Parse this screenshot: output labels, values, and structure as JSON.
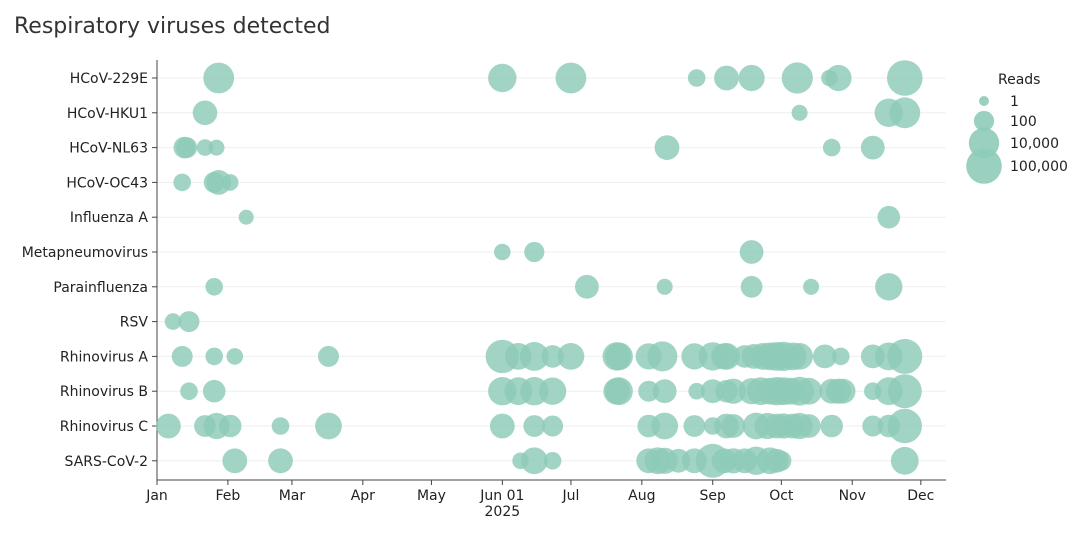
{
  "chart_data": {
    "type": "scatter",
    "title": "Respiratory viruses detected",
    "xlabel": "",
    "ylabel": "",
    "x_tick_labels": [
      "Jan",
      "Feb",
      "Mar",
      "Apr",
      "May",
      "Jun 01",
      "Jul",
      "Aug",
      "Sep",
      "Oct",
      "Nov",
      "Dec"
    ],
    "x_year_label": "2025",
    "xlim": [
      "2025-01-01",
      "2025-12-12"
    ],
    "categories": [
      "HCoV-229E",
      "HCoV-HKU1",
      "HCoV-NL63",
      "HCoV-OC43",
      "Influenza A",
      "Metapneumovirus",
      "Parainfluenza",
      "RSV",
      "Rhinovirus A",
      "Rhinovirus B",
      "Rhinovirus C",
      "SARS-CoV-2"
    ],
    "marker_color": "#8ecbb8",
    "grid": "horizontal",
    "legend": {
      "title": "Reads",
      "placement": "right",
      "entries": [
        {
          "label": "1",
          "reads": 1
        },
        {
          "label": "100",
          "reads": 100
        },
        {
          "label": "10,000",
          "reads": 10000
        },
        {
          "label": "100,000",
          "reads": 100000
        }
      ]
    },
    "points": [
      {
        "virus": "HCoV-229E",
        "date": "2025-01-28",
        "reads": 12000
      },
      {
        "virus": "HCoV-229E",
        "date": "2025-06-01",
        "reads": 4000
      },
      {
        "virus": "HCoV-229E",
        "date": "2025-07-01",
        "reads": 12000
      },
      {
        "virus": "HCoV-229E",
        "date": "2025-08-25",
        "reads": 30
      },
      {
        "virus": "HCoV-229E",
        "date": "2025-09-07",
        "reads": 800
      },
      {
        "virus": "HCoV-229E",
        "date": "2025-09-18",
        "reads": 1500
      },
      {
        "virus": "HCoV-229E",
        "date": "2025-10-08",
        "reads": 15000
      },
      {
        "virus": "HCoV-229E",
        "date": "2025-10-22",
        "reads": 20
      },
      {
        "virus": "HCoV-229E",
        "date": "2025-10-26",
        "reads": 1500
      },
      {
        "virus": "HCoV-229E",
        "date": "2025-11-24",
        "reads": 100000
      },
      {
        "virus": "HCoV-HKU1",
        "date": "2025-01-22",
        "reads": 700
      },
      {
        "virus": "HCoV-HKU1",
        "date": "2025-10-09",
        "reads": 15
      },
      {
        "virus": "HCoV-HKU1",
        "date": "2025-11-17",
        "reads": 4000
      },
      {
        "virus": "HCoV-HKU1",
        "date": "2025-11-24",
        "reads": 12000
      },
      {
        "virus": "HCoV-NL63",
        "date": "2025-01-13",
        "reads": 200
      },
      {
        "virus": "HCoV-NL63",
        "date": "2025-01-14",
        "reads": 150
      },
      {
        "virus": "HCoV-NL63",
        "date": "2025-01-22",
        "reads": 20
      },
      {
        "virus": "HCoV-NL63",
        "date": "2025-01-27",
        "reads": 15
      },
      {
        "virus": "HCoV-NL63",
        "date": "2025-08-12",
        "reads": 800
      },
      {
        "virus": "HCoV-NL63",
        "date": "2025-10-23",
        "reads": 30
      },
      {
        "virus": "HCoV-NL63",
        "date": "2025-11-10",
        "reads": 500
      },
      {
        "virus": "HCoV-OC43",
        "date": "2025-01-12",
        "reads": 30
      },
      {
        "virus": "HCoV-OC43",
        "date": "2025-01-26",
        "reads": 150
      },
      {
        "virus": "HCoV-OC43",
        "date": "2025-01-28",
        "reads": 800
      },
      {
        "virus": "HCoV-OC43",
        "date": "2025-02-02",
        "reads": 20
      },
      {
        "virus": "Influenza A",
        "date": "2025-02-09",
        "reads": 10
      },
      {
        "virus": "Influenza A",
        "date": "2025-11-17",
        "reads": 300
      },
      {
        "virus": "Metapneumovirus",
        "date": "2025-06-01",
        "reads": 20
      },
      {
        "virus": "Metapneumovirus",
        "date": "2025-06-15",
        "reads": 100
      },
      {
        "virus": "Metapneumovirus",
        "date": "2025-09-18",
        "reads": 500
      },
      {
        "virus": "Parainfluenza",
        "date": "2025-01-26",
        "reads": 30
      },
      {
        "virus": "Parainfluenza",
        "date": "2025-07-08",
        "reads": 500
      },
      {
        "virus": "Parainfluenza",
        "date": "2025-08-11",
        "reads": 15
      },
      {
        "virus": "Parainfluenza",
        "date": "2025-09-18",
        "reads": 200
      },
      {
        "virus": "Parainfluenza",
        "date": "2025-10-14",
        "reads": 15
      },
      {
        "virus": "Parainfluenza",
        "date": "2025-11-17",
        "reads": 2500
      },
      {
        "virus": "RSV",
        "date": "2025-01-08",
        "reads": 20
      },
      {
        "virus": "RSV",
        "date": "2025-01-15",
        "reads": 150
      },
      {
        "virus": "Rhinovirus A",
        "date": "2025-01-12",
        "reads": 150
      },
      {
        "virus": "Rhinovirus A",
        "date": "2025-01-26",
        "reads": 30
      },
      {
        "virus": "Rhinovirus A",
        "date": "2025-02-04",
        "reads": 20
      },
      {
        "virus": "Rhinovirus A",
        "date": "2025-03-17",
        "reads": 150
      },
      {
        "virus": "Rhinovirus A",
        "date": "2025-06-01",
        "reads": 40000
      },
      {
        "virus": "Rhinovirus A",
        "date": "2025-06-08",
        "reads": 2000
      },
      {
        "virus": "Rhinovirus A",
        "date": "2025-06-15",
        "reads": 5000
      },
      {
        "virus": "Rhinovirus A",
        "date": "2025-06-23",
        "reads": 300
      },
      {
        "virus": "Rhinovirus A",
        "date": "2025-07-01",
        "reads": 2000
      },
      {
        "virus": "Rhinovirus A",
        "date": "2025-07-21",
        "reads": 4000
      },
      {
        "virus": "Rhinovirus A",
        "date": "2025-07-22",
        "reads": 3000
      },
      {
        "virus": "Rhinovirus A",
        "date": "2025-08-04",
        "reads": 1500
      },
      {
        "virus": "Rhinovirus A",
        "date": "2025-08-10",
        "reads": 8000
      },
      {
        "virus": "Rhinovirus A",
        "date": "2025-08-24",
        "reads": 1500
      },
      {
        "virus": "Rhinovirus A",
        "date": "2025-09-01",
        "reads": 4000
      },
      {
        "virus": "Rhinovirus A",
        "date": "2025-09-06",
        "reads": 1500
      },
      {
        "virus": "Rhinovirus A",
        "date": "2025-09-07",
        "reads": 2000
      },
      {
        "virus": "Rhinovirus A",
        "date": "2025-09-15",
        "reads": 300
      },
      {
        "virus": "Rhinovirus A",
        "date": "2025-09-19",
        "reads": 800
      },
      {
        "virus": "Rhinovirus A",
        "date": "2025-09-23",
        "reads": 2000
      },
      {
        "virus": "Rhinovirus A",
        "date": "2025-09-26",
        "reads": 3000
      },
      {
        "virus": "Rhinovirus A",
        "date": "2025-09-29",
        "reads": 5000
      },
      {
        "virus": "Rhinovirus A",
        "date": "2025-10-02",
        "reads": 6000
      },
      {
        "virus": "Rhinovirus A",
        "date": "2025-10-06",
        "reads": 3000
      },
      {
        "virus": "Rhinovirus A",
        "date": "2025-10-09",
        "reads": 2000
      },
      {
        "virus": "Rhinovirus A",
        "date": "2025-10-20",
        "reads": 500
      },
      {
        "virus": "Rhinovirus A",
        "date": "2025-10-27",
        "reads": 30
      },
      {
        "virus": "Rhinovirus A",
        "date": "2025-11-10",
        "reads": 500
      },
      {
        "virus": "Rhinovirus A",
        "date": "2025-11-17",
        "reads": 3000
      },
      {
        "virus": "Rhinovirus A",
        "date": "2025-11-24",
        "reads": 80000
      },
      {
        "virus": "Rhinovirus B",
        "date": "2025-01-15",
        "reads": 30
      },
      {
        "virus": "Rhinovirus B",
        "date": "2025-01-26",
        "reads": 300
      },
      {
        "virus": "Rhinovirus B",
        "date": "2025-06-01",
        "reads": 4000
      },
      {
        "virus": "Rhinovirus B",
        "date": "2025-06-08",
        "reads": 3000
      },
      {
        "virus": "Rhinovirus B",
        "date": "2025-06-15",
        "reads": 4000
      },
      {
        "virus": "Rhinovirus B",
        "date": "2025-06-23",
        "reads": 2500
      },
      {
        "virus": "Rhinovirus B",
        "date": "2025-07-21",
        "reads": 2000
      },
      {
        "virus": "Rhinovirus B",
        "date": "2025-07-22",
        "reads": 3000
      },
      {
        "virus": "Rhinovirus B",
        "date": "2025-08-04",
        "reads": 150
      },
      {
        "virus": "Rhinovirus B",
        "date": "2025-08-11",
        "reads": 500
      },
      {
        "virus": "Rhinovirus B",
        "date": "2025-08-25",
        "reads": 20
      },
      {
        "virus": "Rhinovirus B",
        "date": "2025-09-01",
        "reads": 500
      },
      {
        "virus": "Rhinovirus B",
        "date": "2025-09-07",
        "reads": 300
      },
      {
        "virus": "Rhinovirus B",
        "date": "2025-09-10",
        "reads": 1000
      },
      {
        "virus": "Rhinovirus B",
        "date": "2025-09-18",
        "reads": 1500
      },
      {
        "virus": "Rhinovirus B",
        "date": "2025-09-22",
        "reads": 3000
      },
      {
        "virus": "Rhinovirus B",
        "date": "2025-09-26",
        "reads": 2000
      },
      {
        "virus": "Rhinovirus B",
        "date": "2025-09-29",
        "reads": 4000
      },
      {
        "virus": "Rhinovirus B",
        "date": "2025-10-02",
        "reads": 3000
      },
      {
        "virus": "Rhinovirus B",
        "date": "2025-10-05",
        "reads": 2000
      },
      {
        "virus": "Rhinovirus B",
        "date": "2025-10-09",
        "reads": 5000
      },
      {
        "virus": "Rhinovirus B",
        "date": "2025-10-13",
        "reads": 2000
      },
      {
        "virus": "Rhinovirus B",
        "date": "2025-10-23",
        "reads": 800
      },
      {
        "virus": "Rhinovirus B",
        "date": "2025-10-26",
        "reads": 1000
      },
      {
        "virus": "Rhinovirus B",
        "date": "2025-10-28",
        "reads": 800
      },
      {
        "virus": "Rhinovirus B",
        "date": "2025-11-10",
        "reads": 30
      },
      {
        "virus": "Rhinovirus B",
        "date": "2025-11-17",
        "reads": 3000
      },
      {
        "virus": "Rhinovirus B",
        "date": "2025-11-24",
        "reads": 50000
      },
      {
        "virus": "Rhinovirus C",
        "date": "2025-01-06",
        "reads": 800
      },
      {
        "virus": "Rhinovirus C",
        "date": "2025-01-22",
        "reads": 200
      },
      {
        "virus": "Rhinovirus C",
        "date": "2025-01-27",
        "reads": 1500
      },
      {
        "virus": "Rhinovirus C",
        "date": "2025-02-02",
        "reads": 300
      },
      {
        "virus": "Rhinovirus C",
        "date": "2025-02-24",
        "reads": 30
      },
      {
        "virus": "Rhinovirus C",
        "date": "2025-03-17",
        "reads": 2000
      },
      {
        "virus": "Rhinovirus C",
        "date": "2025-06-01",
        "reads": 800
      },
      {
        "virus": "Rhinovirus C",
        "date": "2025-06-15",
        "reads": 200
      },
      {
        "virus": "Rhinovirus C",
        "date": "2025-06-23",
        "reads": 150
      },
      {
        "virus": "Rhinovirus C",
        "date": "2025-08-04",
        "reads": 300
      },
      {
        "virus": "Rhinovirus C",
        "date": "2025-08-11",
        "reads": 2000
      },
      {
        "virus": "Rhinovirus C",
        "date": "2025-08-24",
        "reads": 200
      },
      {
        "virus": "Rhinovirus C",
        "date": "2025-09-01",
        "reads": 30
      },
      {
        "virus": "Rhinovirus C",
        "date": "2025-09-07",
        "reads": 800
      },
      {
        "virus": "Rhinovirus C",
        "date": "2025-09-10",
        "reads": 500
      },
      {
        "virus": "Rhinovirus C",
        "date": "2025-09-20",
        "reads": 2000
      },
      {
        "virus": "Rhinovirus C",
        "date": "2025-09-25",
        "reads": 1500
      },
      {
        "virus": "Rhinovirus C",
        "date": "2025-09-29",
        "reads": 800
      },
      {
        "virus": "Rhinovirus C",
        "date": "2025-10-02",
        "reads": 1000
      },
      {
        "virus": "Rhinovirus C",
        "date": "2025-10-06",
        "reads": 800
      },
      {
        "virus": "Rhinovirus C",
        "date": "2025-10-09",
        "reads": 1500
      },
      {
        "virus": "Rhinovirus C",
        "date": "2025-10-13",
        "reads": 500
      },
      {
        "virus": "Rhinovirus C",
        "date": "2025-10-23",
        "reads": 300
      },
      {
        "virus": "Rhinovirus C",
        "date": "2025-11-10",
        "reads": 150
      },
      {
        "virus": "Rhinovirus C",
        "date": "2025-11-17",
        "reads": 300
      },
      {
        "virus": "Rhinovirus C",
        "date": "2025-11-24",
        "reads": 60000
      },
      {
        "virus": "SARS-CoV-2",
        "date": "2025-02-04",
        "reads": 800
      },
      {
        "virus": "SARS-CoV-2",
        "date": "2025-02-24",
        "reads": 800
      },
      {
        "virus": "SARS-CoV-2",
        "date": "2025-06-09",
        "reads": 20
      },
      {
        "virus": "SARS-CoV-2",
        "date": "2025-06-15",
        "reads": 2000
      },
      {
        "virus": "SARS-CoV-2",
        "date": "2025-06-23",
        "reads": 30
      },
      {
        "virus": "SARS-CoV-2",
        "date": "2025-08-04",
        "reads": 800
      },
      {
        "virus": "SARS-CoV-2",
        "date": "2025-08-08",
        "reads": 2000
      },
      {
        "virus": "SARS-CoV-2",
        "date": "2025-08-11",
        "reads": 1500
      },
      {
        "virus": "SARS-CoV-2",
        "date": "2025-08-17",
        "reads": 500
      },
      {
        "virus": "SARS-CoV-2",
        "date": "2025-08-24",
        "reads": 800
      },
      {
        "virus": "SARS-CoV-2",
        "date": "2025-09-01",
        "reads": 50000
      },
      {
        "virus": "SARS-CoV-2",
        "date": "2025-09-06",
        "reads": 800
      },
      {
        "virus": "SARS-CoV-2",
        "date": "2025-09-10",
        "reads": 1000
      },
      {
        "virus": "SARS-CoV-2",
        "date": "2025-09-15",
        "reads": 800
      },
      {
        "virus": "SARS-CoV-2",
        "date": "2025-09-20",
        "reads": 4000
      },
      {
        "virus": "SARS-CoV-2",
        "date": "2025-09-26",
        "reads": 2000
      },
      {
        "virus": "SARS-CoV-2",
        "date": "2025-09-29",
        "reads": 500
      },
      {
        "virus": "SARS-CoV-2",
        "date": "2025-10-01",
        "reads": 100
      },
      {
        "virus": "SARS-CoV-2",
        "date": "2025-11-24",
        "reads": 3000
      }
    ]
  }
}
